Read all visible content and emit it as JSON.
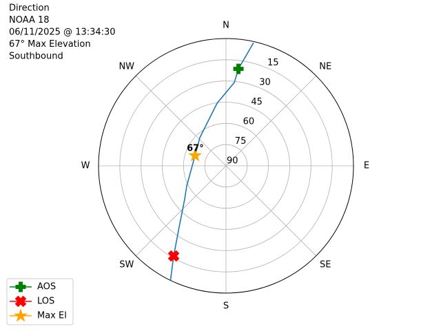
{
  "chart_data": {
    "type": "polar",
    "title_lines": [
      "Direction",
      "NOAA 18",
      "06/11/2025 @ 13:34:30",
      "67° Max Elevation",
      "Southbound"
    ],
    "rlim": [
      90,
      0
    ],
    "rticks": [
      15,
      30,
      45,
      60,
      75,
      90
    ],
    "thetaticks": [
      {
        "value": 0,
        "label": "N"
      },
      {
        "value": 45,
        "label": "NE"
      },
      {
        "value": 90,
        "label": "E"
      },
      {
        "value": 135,
        "label": "SE"
      },
      {
        "value": 180,
        "label": "S"
      },
      {
        "value": 225,
        "label": "SW"
      },
      {
        "value": 270,
        "label": "W"
      },
      {
        "value": 315,
        "label": "NW"
      }
    ],
    "grid": true,
    "track": {
      "color": "#1f77b4",
      "az": [
        12.6,
        7.3,
        5.7,
        351.9,
        317.2,
        288.4,
        243,
        230.8,
        217.4,
        210.1,
        205.9
      ],
      "el": [
        0.8,
        20.9,
        30.8,
        45.3,
        62.8,
        67,
        58.9,
        52.3,
        35.5,
        16.3,
        0.3
      ]
    },
    "series": [
      {
        "name": "AOS",
        "color": "green",
        "marker": "plus",
        "az": [
          7.3
        ],
        "el": [
          20.9
        ]
      },
      {
        "name": "LOS",
        "color": "red",
        "marker": "x",
        "az": [
          210.1
        ],
        "el": [
          16.3
        ]
      },
      {
        "name": "Max El",
        "color": "orange",
        "marker": "star",
        "az": [
          288.4
        ],
        "el": [
          67
        ]
      }
    ],
    "annotation": "67°",
    "legend": "lower left"
  }
}
